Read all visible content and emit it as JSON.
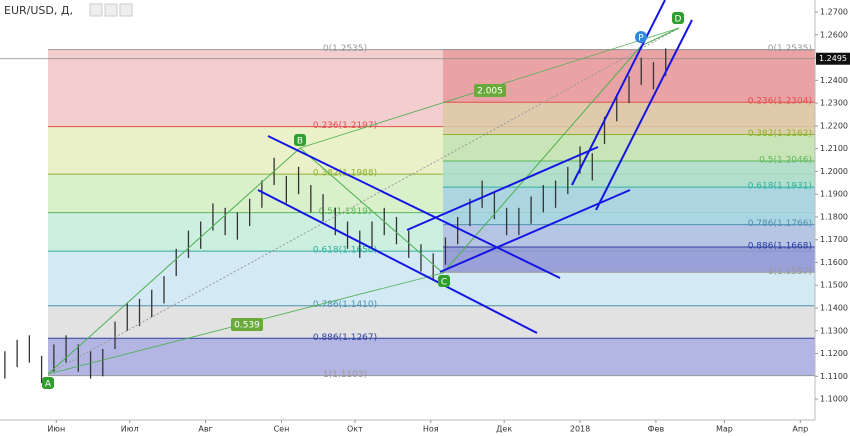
{
  "chart_data": {
    "type": "ohlc",
    "title": "EUR/USD, Д,",
    "x": [
      10,
      15,
      20,
      25,
      30,
      35,
      40,
      45,
      50,
      55,
      60,
      65,
      70,
      75,
      80,
      85,
      90,
      95,
      100,
      105,
      110,
      115,
      120,
      125,
      130,
      135,
      140,
      145,
      150,
      155,
      160,
      165,
      170,
      175,
      180,
      185,
      190,
      195,
      200,
      205,
      210,
      215,
      220,
      225,
      230,
      235,
      240,
      245,
      250,
      255,
      260,
      265,
      270,
      275,
      280
    ],
    "series": [
      {
        "color": "#333333",
        "high": [
          1.121,
          1.126,
          1.128,
          1.119,
          1.124,
          1.128,
          1.124,
          1.121,
          1.122,
          1.134,
          1.142,
          1.144,
          1.148,
          1.154,
          1.166,
          1.174,
          1.178,
          1.186,
          1.184,
          1.182,
          1.188,
          1.196,
          1.206,
          1.198,
          1.202,
          1.194,
          1.19,
          1.184,
          1.178,
          1.174,
          1.178,
          1.184,
          1.18,
          1.174,
          1.168,
          1.164,
          1.171,
          1.18,
          1.188,
          1.196,
          1.191,
          1.184,
          1.184,
          1.189,
          1.194,
          1.196,
          1.202,
          1.211,
          1.208,
          1.224,
          1.234,
          1.242,
          1.25,
          1.248,
          1.254
        ],
        "low": [
          1.109,
          1.114,
          1.116,
          1.107,
          1.112,
          1.116,
          1.112,
          1.109,
          1.11,
          1.122,
          1.13,
          1.132,
          1.136,
          1.142,
          1.154,
          1.162,
          1.166,
          1.174,
          1.172,
          1.17,
          1.176,
          1.184,
          1.194,
          1.186,
          1.19,
          1.182,
          1.178,
          1.172,
          1.166,
          1.162,
          1.166,
          1.172,
          1.168,
          1.162,
          1.156,
          1.152,
          1.159,
          1.168,
          1.176,
          1.184,
          1.179,
          1.172,
          1.172,
          1.177,
          1.182,
          1.184,
          1.19,
          1.199,
          1.196,
          1.212,
          1.222,
          1.23,
          1.238,
          1.236,
          1.242
        ]
      }
    ],
    "xlim": [
      8,
      341
    ],
    "xticks": [
      {
        "value": 31,
        "label": "Июн"
      },
      {
        "value": 61,
        "label": "Июл"
      },
      {
        "value": 92,
        "label": "Авг"
      },
      {
        "value": 123,
        "label": "Сен"
      },
      {
        "value": 153,
        "label": "Окт"
      },
      {
        "value": 184,
        "label": "Ноя"
      },
      {
        "value": 214,
        "label": "Дек"
      },
      {
        "value": 245,
        "label": "2018"
      },
      {
        "value": 276,
        "label": "Фев"
      },
      {
        "value": 304,
        "label": "Мар"
      },
      {
        "value": 335,
        "label": "Апр"
      }
    ],
    "ylim": [
      1.0908,
      1.2753
    ],
    "yticks": [
      {
        "value": 1.27,
        "label": "1.2700"
      },
      {
        "value": 1.26,
        "label": "1.2600"
      },
      {
        "value": 1.25,
        "label": "1.2500"
      },
      {
        "value": 1.24,
        "label": "1.2400"
      },
      {
        "value": 1.23,
        "label": "1.2300"
      },
      {
        "value": 1.22,
        "label": "1.2200"
      },
      {
        "value": 1.21,
        "label": "1.2100"
      },
      {
        "value": 1.2,
        "label": "1.2000"
      },
      {
        "value": 1.19,
        "label": "1.1900"
      },
      {
        "value": 1.18,
        "label": "1.1800"
      },
      {
        "value": 1.17,
        "label": "1.1700"
      },
      {
        "value": 1.16,
        "label": "1.1600"
      },
      {
        "value": 1.15,
        "label": "1.1500"
      },
      {
        "value": 1.14,
        "label": "1.1400"
      },
      {
        "value": 1.13,
        "label": "1.1300"
      },
      {
        "value": 1.12,
        "label": "1.1200"
      },
      {
        "value": 1.11,
        "label": "1.1100"
      },
      {
        "value": 1.1,
        "label": "1.1000"
      }
    ],
    "last_price": {
      "value": 1.2495,
      "label": "1.2495"
    },
    "fibs": [
      {
        "levels": [
          {
            "value": 1.2535,
            "label": "0(1.2535)"
          },
          {
            "value": 1.2197,
            "label": "0.236(1.2197)"
          },
          {
            "value": 1.1988,
            "label": "0.382(1.1988)"
          },
          {
            "value": 1.1819,
            "label": "0.5(1.1819)"
          },
          {
            "value": 1.165,
            "label": "0.618(1.1650)"
          },
          {
            "value": 1.141,
            "label": "0.786(1.1410)"
          },
          {
            "value": 1.1267,
            "label": "0.886(1.1267)"
          },
          {
            "value": 1.1103,
            "label": "1(1.1103)"
          }
        ],
        "band_colors": [
          "#f4cdcf",
          "#eaf1c8",
          "#d9f0cb",
          "#cdefe0",
          "#d3e9f4",
          "#e2e2e2",
          "#b3b6e3"
        ],
        "line_colors": [
          "#999999",
          "#e05050",
          "#8fb030",
          "#5cb85c",
          "#30b0a0",
          "#5090b0",
          "#3040a0",
          "#999999"
        ]
      },
      {
        "levels": [
          {
            "value": 1.2535,
            "label": "0(1.2535)"
          },
          {
            "value": 1.2304,
            "label": "0.236(1.2304)"
          },
          {
            "value": 1.2162,
            "label": "0.382(1.2162)"
          },
          {
            "value": 1.2046,
            "label": "0.5(1.2046)"
          },
          {
            "value": 1.1931,
            "label": "0.618(1.1931)"
          },
          {
            "value": 1.1766,
            "label": "0.786(1.1766)"
          },
          {
            "value": 1.1668,
            "label": "0.886(1.1668)"
          },
          {
            "value": 1.1557,
            "label": "1(1.1557)"
          }
        ],
        "band_colors": [
          "#e79b9e",
          "#dcc9a6",
          "#c3e2b3",
          "#a9dccd",
          "#a3d0e3",
          "#b2bde3",
          "#8f93d2"
        ],
        "line_colors": [
          "#999999",
          "#e05050",
          "#8fb030",
          "#5cb85c",
          "#30b0a0",
          "#5090b0",
          "#3040a0",
          "#999999"
        ]
      }
    ],
    "points": [
      "A",
      "B",
      "C",
      "P",
      "D"
    ],
    "ratios": [
      "2.005",
      "0.539"
    ]
  }
}
